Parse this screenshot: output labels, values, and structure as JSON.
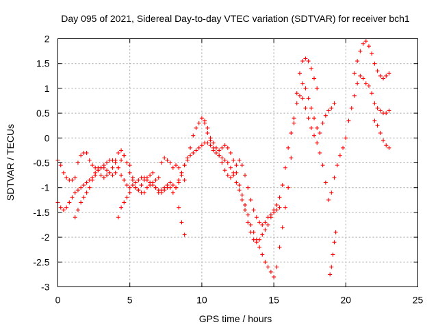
{
  "chart_data": {
    "type": "scatter",
    "title": "Day 095 of 2021, Sidereal Day-to-day VTEC variation (SDTVAR) for receiver bch1",
    "xlabel": "GPS time / hours",
    "ylabel": "SDTVAR / TECUs",
    "xlim": [
      0,
      25
    ],
    "ylim": [
      -3,
      2
    ],
    "x_ticks": [
      0,
      5,
      10,
      15,
      20,
      25
    ],
    "y_ticks": [
      -3,
      -2.5,
      -2,
      -1.5,
      -1,
      -0.5,
      0,
      0.5,
      1,
      1.5,
      2
    ],
    "x_tick_labels": [
      "0",
      "5",
      "10",
      "15",
      "20",
      "25"
    ],
    "y_tick_labels": [
      "-3",
      "-2.5",
      "-2",
      "-1.5",
      "-1",
      "-0.5",
      "0",
      "0.5",
      "1",
      "1.5",
      "2"
    ],
    "grid": true,
    "marker": "+",
    "color": "#ff0000",
    "series": [
      {
        "x": [
          0.0,
          0.2,
          0.4,
          0.6,
          0.8,
          1.0,
          1.2,
          1.4,
          1.6,
          1.8,
          2.0,
          2.2,
          2.4,
          2.6,
          2.8,
          3.0,
          3.2,
          3.4,
          3.6,
          3.8,
          4.0,
          4.2,
          4.4,
          4.6,
          4.8,
          5.0,
          5.2,
          5.4,
          5.6,
          5.8,
          6.0,
          6.2,
          6.4,
          6.6,
          6.8,
          7.0,
          7.2,
          7.4,
          7.6,
          7.8,
          8.0,
          8.2,
          8.4,
          8.6,
          8.8
        ],
        "values": [
          -0.45,
          -0.55,
          -0.7,
          -0.8,
          -0.85,
          -0.85,
          -0.8,
          -0.5,
          -0.35,
          -0.3,
          -0.3,
          -0.45,
          -0.55,
          -0.6,
          -0.65,
          -0.75,
          -0.8,
          -0.75,
          -0.7,
          -0.6,
          -0.45,
          -0.3,
          -0.25,
          -0.35,
          -0.5,
          -0.55,
          -0.8,
          -1.0,
          -1.05,
          -0.95,
          -0.85,
          -0.8,
          -0.75,
          -0.7,
          -0.85,
          -0.8,
          -0.5,
          -0.4,
          -0.45,
          -0.5,
          -0.6,
          -0.55,
          -0.6,
          -0.7,
          -0.85
        ]
      },
      {
        "x": [
          0.0,
          0.2,
          0.4,
          0.6,
          0.8,
          1.0,
          1.2,
          1.4,
          1.6,
          1.8,
          2.0,
          2.2,
          2.4,
          2.6,
          2.8,
          3.0,
          3.2,
          3.4,
          3.6,
          3.8,
          4.0,
          4.2,
          4.4,
          4.6,
          4.8,
          5.0,
          5.2,
          5.4,
          5.6,
          5.8,
          6.0,
          6.2,
          6.4,
          6.6,
          6.8,
          7.0,
          7.2,
          7.4,
          7.6,
          7.8,
          8.0,
          8.2,
          8.4,
          8.6,
          8.8,
          9.0,
          9.2,
          9.4,
          9.6,
          9.8,
          10.0,
          10.2,
          10.4,
          10.6,
          10.8,
          11.0,
          11.2,
          11.4,
          11.6,
          11.8,
          12.0,
          12.2,
          12.4,
          12.6,
          12.8,
          13.0,
          13.2,
          13.4,
          13.6,
          13.8,
          14.0,
          14.2,
          14.4,
          14.6,
          14.8,
          15.0,
          15.2,
          15.4,
          15.6,
          15.8,
          16.0,
          16.2,
          16.4,
          16.6,
          16.8,
          17.0,
          17.2,
          17.4,
          17.6,
          17.8,
          18.0,
          18.2,
          18.4,
          18.6,
          18.8,
          19.0,
          19.2,
          19.4,
          19.6,
          19.8,
          20.0,
          20.2,
          20.4,
          20.6,
          20.8,
          21.0,
          21.2,
          21.4,
          21.6,
          21.8,
          22.0,
          22.2,
          22.4,
          22.6,
          22.8,
          23.0
        ],
        "values": [
          -1.3,
          -1.4,
          -1.45,
          -1.4,
          -1.3,
          -1.2,
          -1.1,
          -1.05,
          -1.0,
          -0.95,
          -0.9,
          -0.85,
          -0.8,
          -0.7,
          -0.6,
          -0.6,
          -0.55,
          -0.5,
          -0.45,
          -0.45,
          -0.5,
          -0.6,
          -0.75,
          -0.85,
          -0.95,
          -1.0,
          -0.95,
          -0.9,
          -0.85,
          -0.8,
          -0.8,
          -0.85,
          -0.9,
          -0.95,
          -1.0,
          -1.1,
          -1.05,
          -1.0,
          -0.95,
          -0.9,
          -0.95,
          -1.0,
          -0.9,
          -0.75,
          -0.55,
          -0.45,
          -0.35,
          -0.3,
          -0.25,
          -0.2,
          -0.15,
          -0.1,
          -0.1,
          -0.15,
          -0.25,
          -0.3,
          -0.35,
          -0.4,
          -0.45,
          -0.5,
          -0.6,
          -0.75,
          -0.9,
          -1.05,
          -1.25,
          -1.45,
          -1.7,
          -1.9,
          -2.05,
          -2.1,
          -2.05,
          -1.95,
          -1.85,
          -1.75,
          -1.6,
          -1.45,
          -1.35,
          -1.2,
          -0.95,
          -0.6,
          -0.2,
          0.1,
          0.4,
          0.7,
          0.85,
          0.8,
          0.6,
          0.4,
          0.2,
          0.05,
          -0.1,
          -0.3,
          -0.55,
          -0.9,
          -1.25,
          -1.1,
          -0.8,
          -0.55,
          -0.35,
          -0.2,
          0.0,
          0.35,
          0.6,
          0.85,
          1.1,
          1.25,
          1.2,
          1.1,
          1.05,
          0.9,
          0.7,
          0.6,
          0.55,
          0.5,
          0.5,
          0.55
        ]
      },
      {
        "x": [
          1.2,
          1.4,
          1.6,
          1.8,
          2.0,
          2.2,
          2.4,
          2.6,
          2.8,
          3.0,
          3.2,
          3.4,
          3.6,
          3.8,
          4.0,
          4.2,
          4.4,
          4.6,
          4.8,
          5.0,
          5.2,
          5.4,
          5.6,
          5.8,
          6.0,
          6.2,
          6.4,
          6.6,
          6.8,
          7.0,
          7.2,
          7.4,
          7.6,
          7.8,
          8.0,
          8.2,
          8.4,
          8.6,
          8.8,
          9.0,
          9.2,
          9.4,
          9.6,
          9.8,
          10.0,
          10.2,
          10.4,
          10.6,
          10.8,
          11.0,
          11.2,
          11.4,
          11.6,
          11.8,
          12.0,
          12.2,
          12.4,
          12.6,
          12.8,
          13.0,
          13.2,
          13.4,
          13.6,
          13.8,
          14.0,
          14.2,
          14.4,
          14.6,
          14.8,
          15.0,
          15.2,
          15.4,
          15.6,
          15.8,
          16.0,
          16.2,
          16.4,
          16.6,
          16.8,
          17.0,
          17.2,
          17.4,
          17.6,
          17.8,
          18.0
        ],
        "values": [
          -1.6,
          -1.45,
          -1.3,
          -1.2,
          -1.1,
          -1.0,
          -0.85,
          -0.75,
          -0.65,
          -0.6,
          -0.6,
          -0.65,
          -0.7,
          -0.75,
          -0.7,
          -0.6,
          -0.45,
          -0.35,
          -0.5,
          -0.7,
          -0.85,
          -1.0,
          -1.05,
          -1.1,
          -1.1,
          -1.0,
          -0.95,
          -0.9,
          -1.0,
          -1.05,
          -1.1,
          -1.05,
          -1.0,
          -1.0,
          -1.1,
          -1.0,
          -0.85,
          -0.7,
          -0.55,
          -0.4,
          -0.2,
          0.05,
          0.2,
          0.3,
          0.4,
          0.3,
          0.1,
          -0.05,
          -0.2,
          -0.3,
          -0.25,
          -0.2,
          -0.15,
          -0.2,
          -0.3,
          -0.45,
          -0.7,
          -0.95,
          -1.15,
          -1.35,
          -1.55,
          -1.75,
          -1.9,
          -2.05,
          -2.2,
          -2.35,
          -2.5,
          -2.6,
          -2.7,
          -2.8,
          -2.6,
          -2.2,
          -1.8,
          -1.4,
          -1.0,
          -0.4,
          0.3,
          0.9,
          1.3,
          1.55,
          1.6,
          1.55,
          1.4,
          1.2,
          1.0
        ]
      },
      {
        "x": [
          4.2,
          4.4,
          4.6,
          4.8,
          5.0
        ],
        "values": [
          -1.6,
          -1.4,
          -1.3,
          -1.2,
          -1.1
        ]
      },
      {
        "x": [
          8.4,
          8.6,
          8.8
        ],
        "values": [
          -1.4,
          -1.7,
          -1.95
        ]
      },
      {
        "x": [
          10.2,
          10.4,
          10.6,
          10.8,
          11.0,
          11.2,
          11.4,
          11.6,
          11.8,
          12.0,
          12.2,
          12.4,
          12.6,
          12.8,
          13.0,
          13.2,
          13.4,
          13.6,
          13.8,
          14.0,
          14.2,
          14.4,
          14.6,
          14.8,
          15.0,
          15.2,
          15.4
        ],
        "values": [
          0.35,
          0.2,
          0.0,
          -0.1,
          -0.2,
          -0.35,
          -0.5,
          -0.65,
          -0.75,
          -0.8,
          -0.7,
          -0.55,
          -0.45,
          -0.55,
          -0.75,
          -1.0,
          -1.25,
          -1.45,
          -1.6,
          -1.7,
          -1.75,
          -1.7,
          -1.6,
          -1.55,
          -1.5,
          -1.45,
          -1.4
        ]
      },
      {
        "x": [
          17.0,
          17.2,
          17.4,
          17.6,
          17.8,
          18.0,
          18.2,
          18.4,
          18.6,
          18.8,
          19.0,
          19.2
        ],
        "values": [
          1.1,
          1.0,
          0.8,
          0.6,
          0.4,
          0.2,
          0.1,
          0.3,
          0.45,
          0.55,
          0.6,
          0.7
        ]
      },
      {
        "x": [
          18.9,
          19.0,
          19.1,
          19.2,
          19.3
        ],
        "values": [
          -2.75,
          -2.6,
          -2.35,
          -2.1,
          -1.9
        ]
      },
      {
        "x": [
          20.6,
          20.8,
          21.0,
          21.2,
          21.4,
          21.6,
          21.8,
          22.0,
          22.2,
          22.4,
          22.6,
          22.8,
          23.0
        ],
        "values": [
          1.3,
          1.55,
          1.75,
          1.9,
          1.95,
          1.85,
          1.7,
          1.5,
          1.35,
          1.25,
          1.2,
          1.25,
          1.3
        ]
      },
      {
        "x": [
          22.0,
          22.2,
          22.4,
          22.6,
          22.8,
          23.0
        ],
        "values": [
          0.35,
          0.25,
          0.1,
          -0.05,
          -0.15,
          -0.2
        ]
      }
    ]
  }
}
